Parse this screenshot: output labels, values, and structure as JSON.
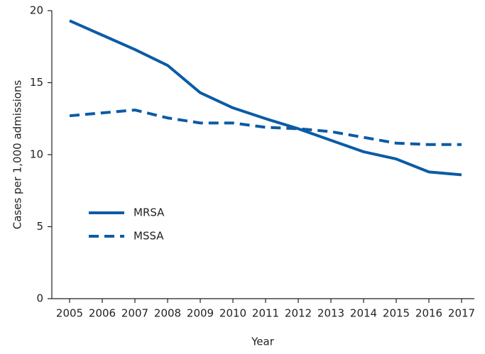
{
  "chart_data": {
    "type": "line",
    "x_label": "Year",
    "y_label": "Cases per 1,000 admissions",
    "categories": [
      "2005",
      "2006",
      "2007",
      "2008",
      "2009",
      "2010",
      "2011",
      "2012",
      "2013",
      "2014",
      "2015",
      "2016",
      "2017"
    ],
    "series": [
      {
        "name": "MRSA",
        "color": "#0b5ba6",
        "style": "solid",
        "values": [
          19.3,
          18.3,
          17.3,
          16.2,
          14.3,
          13.25,
          12.5,
          11.8,
          11.0,
          10.2,
          9.7,
          8.8,
          8.6
        ]
      },
      {
        "name": "MSSA",
        "color": "#0b5ba6",
        "style": "dashed",
        "values": [
          12.7,
          12.9,
          13.1,
          12.55,
          12.2,
          12.2,
          11.9,
          11.8,
          11.6,
          11.2,
          10.8,
          10.7,
          10.7
        ]
      }
    ],
    "ylim": [
      0,
      20
    ],
    "yticks": [
      0,
      5,
      10,
      15,
      20
    ],
    "grid": false
  }
}
